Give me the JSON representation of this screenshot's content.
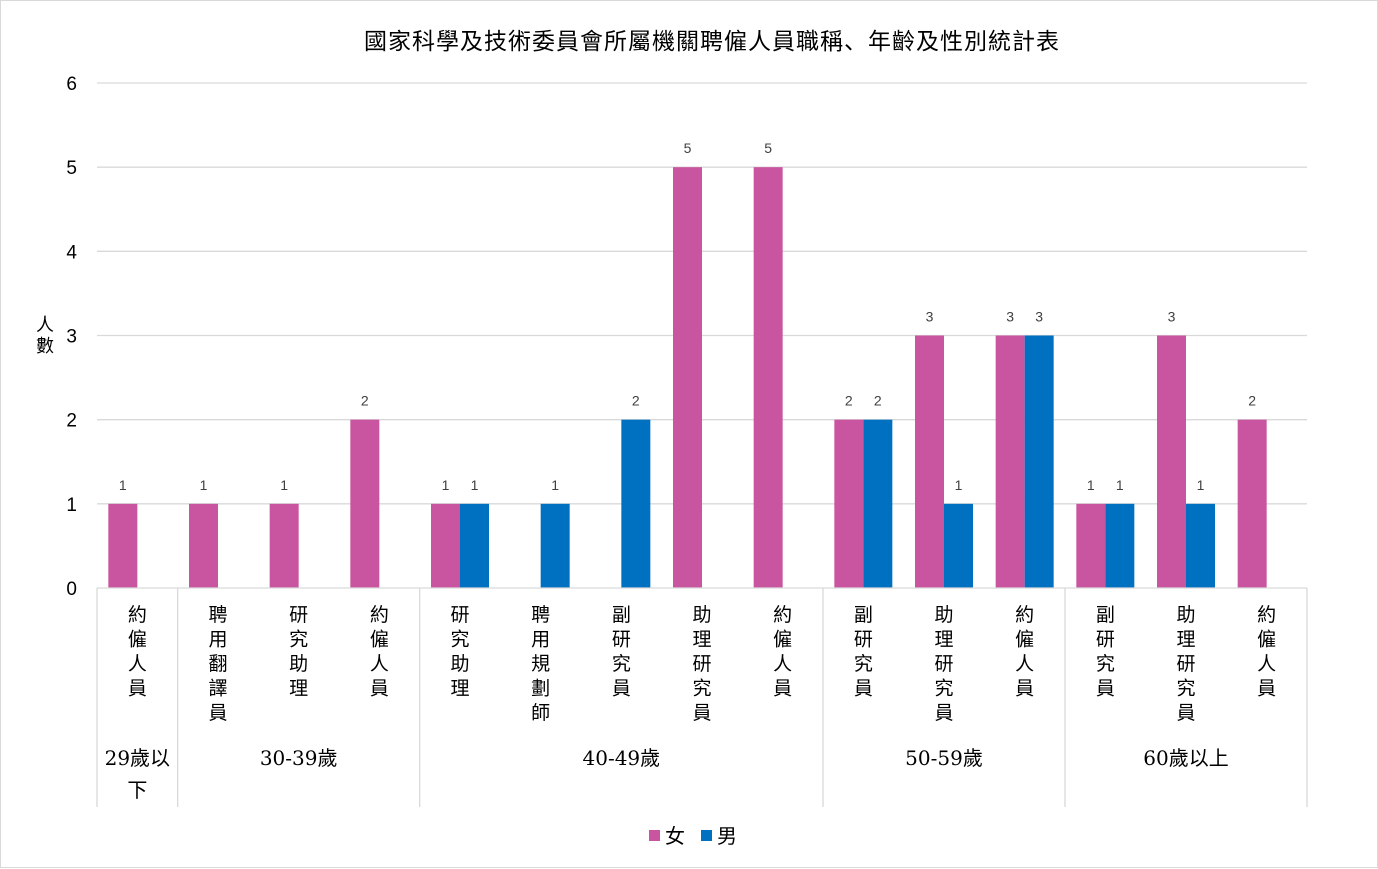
{
  "chart_data": {
    "type": "bar",
    "title": "國家科學及技術委員會所屬機關聘僱人員職稱、年齡及性別統計表",
    "ylabel": "人數",
    "ylim": [
      0,
      6
    ],
    "yticks": [
      "0",
      "1",
      "2",
      "3",
      "4",
      "5",
      "6"
    ],
    "grid": true,
    "legend_position": "bottom",
    "categories": [
      "約僱人員",
      "聘用翻譯員",
      "研究助理",
      "約僱人員",
      "研究助理",
      "聘用規劃師",
      "副研究員",
      "助理研究員",
      "約僱人員",
      "副研究員",
      "助理研究員",
      "約僱人員",
      "副研究員",
      "助理研究員",
      "約僱人員"
    ],
    "groups": [
      {
        "label": "29歲以下",
        "count": 1
      },
      {
        "label": "30-39歲",
        "count": 3
      },
      {
        "label": "40-49歲",
        "count": 5
      },
      {
        "label": "50-59歲",
        "count": 3
      },
      {
        "label": "60歲以上",
        "count": 3
      }
    ],
    "series": [
      {
        "name": "女",
        "color": "#c9549f",
        "values": [
          1,
          1,
          1,
          2,
          1,
          null,
          null,
          5,
          5,
          2,
          3,
          3,
          1,
          3,
          2
        ]
      },
      {
        "name": "男",
        "color": "#0070c0",
        "values": [
          null,
          null,
          null,
          null,
          1,
          1,
          2,
          null,
          null,
          2,
          1,
          3,
          1,
          1,
          null
        ]
      }
    ]
  }
}
